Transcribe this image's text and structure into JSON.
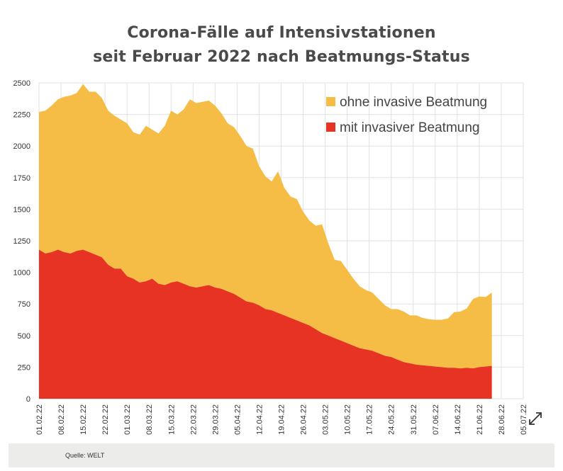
{
  "chart_data": {
    "type": "area",
    "title": [
      "Corona-Fälle auf Intensivstationen",
      "seit Februar 2022 nach Beatmungs-Status"
    ],
    "xlabel": "",
    "ylabel": "",
    "ylim": [
      0,
      2500
    ],
    "yticks": [
      0,
      250,
      500,
      750,
      1000,
      1250,
      1500,
      1750,
      2000,
      2250,
      2500
    ],
    "xtick_labels": [
      "01.02.22",
      "08.02.22",
      "15.02.22",
      "22.02.22",
      "01.03.22",
      "08.03.22",
      "15.03.22",
      "22.03.22",
      "29.03.22",
      "05.04.22",
      "12.04.22",
      "19.04.22",
      "26.04.22",
      "03.05.22",
      "10.05.22",
      "17.05.22",
      "24.05.22",
      "31.05.22",
      "07.06.22",
      "14.06.22",
      "21.06.22",
      "28.06.22",
      "05.07.22"
    ],
    "grid": true,
    "stacked": true,
    "legend_position": "top-right",
    "x_dates": [
      "01.02.22",
      "03.02.22",
      "05.02.22",
      "07.02.22",
      "09.02.22",
      "11.02.22",
      "13.02.22",
      "15.02.22",
      "17.02.22",
      "19.02.22",
      "21.02.22",
      "23.02.22",
      "25.02.22",
      "27.02.22",
      "01.03.22",
      "03.03.22",
      "05.03.22",
      "07.03.22",
      "09.03.22",
      "11.03.22",
      "13.03.22",
      "15.03.22",
      "17.03.22",
      "19.03.22",
      "21.03.22",
      "23.03.22",
      "25.03.22",
      "27.03.22",
      "29.03.22",
      "31.03.22",
      "02.04.22",
      "04.04.22",
      "06.04.22",
      "08.04.22",
      "10.04.22",
      "12.04.22",
      "14.04.22",
      "16.04.22",
      "18.04.22",
      "20.04.22",
      "22.04.22",
      "24.04.22",
      "26.04.22",
      "28.04.22",
      "30.04.22",
      "02.05.22",
      "04.05.22",
      "06.05.22",
      "08.05.22",
      "10.05.22",
      "12.05.22",
      "14.05.22",
      "16.05.22",
      "18.05.22",
      "20.05.22",
      "22.05.22",
      "24.05.22",
      "26.05.22",
      "28.05.22",
      "30.05.22",
      "01.06.22",
      "03.06.22",
      "05.06.22",
      "07.06.22",
      "09.06.22",
      "11.06.22",
      "13.06.22",
      "15.06.22",
      "17.06.22",
      "19.06.22",
      "21.06.22",
      "23.06.22",
      "25.06.22"
    ],
    "series": [
      {
        "name": "mit invasiver Beatmung",
        "color": "#e63323",
        "values": [
          1180,
          1150,
          1160,
          1180,
          1160,
          1150,
          1170,
          1180,
          1160,
          1140,
          1120,
          1060,
          1030,
          1030,
          970,
          950,
          920,
          930,
          950,
          910,
          900,
          920,
          930,
          910,
          890,
          880,
          890,
          900,
          880,
          870,
          850,
          830,
          800,
          770,
          760,
          740,
          710,
          700,
          680,
          660,
          640,
          620,
          600,
          580,
          550,
          520,
          500,
          480,
          460,
          440,
          420,
          400,
          390,
          380,
          360,
          340,
          330,
          310,
          290,
          280,
          270,
          265,
          260,
          255,
          250,
          245,
          245,
          240,
          245,
          240,
          250,
          255,
          260
        ]
      },
      {
        "name": "ohne invasive Beatmung",
        "color": "#f5bd45",
        "values": [
          1090,
          1130,
          1160,
          1190,
          1230,
          1250,
          1250,
          1310,
          1270,
          1290,
          1260,
          1220,
          1210,
          1180,
          1210,
          1160,
          1170,
          1230,
          1180,
          1190,
          1260,
          1360,
          1320,
          1380,
          1480,
          1460,
          1460,
          1460,
          1440,
          1390,
          1330,
          1320,
          1280,
          1230,
          1220,
          1100,
          1050,
          1020,
          1120,
          1010,
          960,
          960,
          880,
          830,
          820,
          860,
          730,
          620,
          630,
          580,
          530,
          490,
          470,
          460,
          430,
          400,
          380,
          400,
          400,
          380,
          390,
          375,
          370,
          370,
          375,
          390,
          440,
          450,
          470,
          550,
          560,
          550,
          580
        ]
      }
    ]
  },
  "source_label": "Quelle: WELT",
  "icons": {
    "expand": "expand-arrows-icon"
  }
}
